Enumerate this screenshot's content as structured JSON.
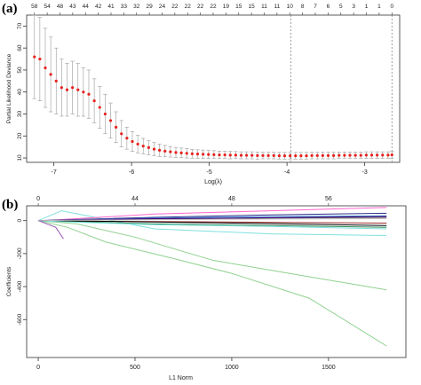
{
  "panels": {
    "a": "(a)",
    "b": "(b)"
  },
  "chart_data": [
    {
      "panel": "(a)",
      "type": "scatter",
      "xlabel": "Log(λ)",
      "ylabel": "Partial Likelihood Deviance",
      "xlim": [
        -7.35,
        -2.55
      ],
      "ylim": [
        8,
        75
      ],
      "x_ticks": [
        -7,
        -6,
        -5,
        -4,
        -3
      ],
      "x_tick_labels": [
        "-7",
        "-6",
        "-5",
        "-4",
        "-3"
      ],
      "y_ticks": [
        10,
        20,
        30,
        40,
        50,
        60,
        70
      ],
      "y_tick_labels": [
        "10",
        "20",
        "30",
        "40",
        "50",
        "60",
        "70"
      ],
      "top_axis_labels": [
        "58",
        "54",
        "48",
        "43",
        "44",
        "42",
        "41",
        "33",
        "32",
        "29",
        "24",
        "22",
        "22",
        "22",
        "22",
        "19",
        "15",
        "15",
        "11",
        "11",
        "10",
        "8",
        "7",
        "6",
        "5",
        "3",
        "1",
        "1",
        "0"
      ],
      "vlines_x": [
        -3.95,
        -2.65
      ],
      "point_color": "#e8231e",
      "errorbar_color": "#9a9a9a",
      "series": [
        {
          "x": [
            -7.25,
            -7.18,
            -7.11,
            -7.04,
            -6.97,
            -6.9,
            -6.83,
            -6.76,
            -6.69,
            -6.62,
            -6.55,
            -6.48,
            -6.41,
            -6.34,
            -6.27,
            -6.2,
            -6.13,
            -6.06,
            -5.99,
            -5.92,
            -5.85,
            -5.78,
            -5.71,
            -5.64,
            -5.57,
            -5.5,
            -5.43,
            -5.36,
            -5.29,
            -5.22,
            -5.15,
            -5.08,
            -5.01,
            -4.94,
            -4.87,
            -4.8,
            -4.73,
            -4.66,
            -4.59,
            -4.52,
            -4.45,
            -4.38,
            -4.31,
            -4.24,
            -4.17,
            -4.1,
            -4.03,
            -3.96,
            -3.89,
            -3.82,
            -3.75,
            -3.68,
            -3.61,
            -3.54,
            -3.47,
            -3.4,
            -3.33,
            -3.26,
            -3.19,
            -3.12,
            -3.05,
            -2.98,
            -2.91,
            -2.84,
            -2.77,
            -2.7,
            -2.65
          ],
          "y": [
            56,
            55,
            51,
            48,
            45,
            42,
            41,
            42,
            41,
            40,
            39,
            36,
            33,
            30,
            27,
            24,
            21,
            19,
            17.5,
            16.3,
            15.4,
            14.7,
            14.0,
            13.5,
            13.1,
            12.8,
            12.5,
            12.3,
            12.1,
            11.9,
            11.8,
            11.7,
            11.6,
            11.5,
            11.4,
            11.4,
            11.3,
            11.3,
            11.2,
            11.2,
            11.2,
            11.1,
            11.1,
            11.1,
            11.1,
            11.0,
            11.0,
            11.0,
            11.0,
            11.0,
            11.0,
            11.1,
            11.1,
            11.1,
            11.1,
            11.1,
            11.2,
            11.2,
            11.2,
            11.2,
            11.2,
            11.3,
            11.3,
            11.3,
            11.3,
            11.3,
            11.4
          ],
          "yerr": [
            19,
            19,
            18,
            17,
            15,
            13,
            12,
            12,
            12,
            11,
            11,
            10,
            9.5,
            9,
            8,
            7,
            6,
            5,
            4.5,
            4,
            3.5,
            3.2,
            3,
            2.8,
            2.6,
            2.4,
            2.3,
            2.2,
            2.1,
            2.0,
            1.9,
            1.9,
            1.8,
            1.8,
            1.7,
            1.7,
            1.7,
            1.6,
            1.6,
            1.6,
            1.6,
            1.6,
            1.5,
            1.5,
            1.5,
            1.5,
            1.5,
            1.5,
            1.5,
            1.5,
            1.5,
            1.5,
            1.5,
            1.5,
            1.5,
            1.5,
            1.5,
            1.5,
            1.5,
            1.5,
            1.5,
            1.5,
            1.5,
            1.5,
            1.5,
            1.5,
            1.5
          ]
        }
      ]
    },
    {
      "panel": "(b)",
      "type": "line",
      "xlabel": "L1 Norm",
      "ylabel": "Coefficients",
      "xlim": [
        -60,
        1900
      ],
      "ylim": [
        -830,
        90
      ],
      "x_ticks": [
        0,
        500,
        1000,
        1500
      ],
      "x_tick_labels": [
        "0",
        "500",
        "1000",
        "1500"
      ],
      "y_ticks": [
        0,
        -200,
        -400,
        -600
      ],
      "y_tick_labels": [
        "0",
        "-200",
        "-400",
        "-600"
      ],
      "top_axis_ticks": [
        0,
        500,
        1000,
        1500
      ],
      "top_axis_labels": [
        "0",
        "44",
        "48",
        "56"
      ],
      "series": [
        {
          "color": "#8fd18f",
          "x": [
            0,
            150,
            350,
            700,
            1000,
            1400,
            1800
          ],
          "y": [
            0,
            -40,
            -130,
            -230,
            -320,
            -470,
            -760
          ]
        },
        {
          "color": "#8fd18f",
          "x": [
            0,
            200,
            500,
            900,
            1300,
            1800
          ],
          "y": [
            0,
            -20,
            -100,
            -240,
            -320,
            -420
          ]
        },
        {
          "color": "#7fe0e0",
          "x": [
            0,
            120,
            600,
            1200,
            1800
          ],
          "y": [
            0,
            60,
            -50,
            -80,
            -90
          ]
        },
        {
          "color": "#ff66cc",
          "x": [
            0,
            100,
            600,
            1200,
            1800
          ],
          "y": [
            0,
            5,
            40,
            60,
            80
          ]
        },
        {
          "color": "#2e2e8a",
          "x": [
            0,
            100,
            600,
            1200,
            1800
          ],
          "y": [
            0,
            4,
            20,
            35,
            45
          ]
        },
        {
          "color": "#3a8fd0",
          "x": [
            0,
            100,
            600,
            1200,
            1800
          ],
          "y": [
            0,
            3,
            15,
            25,
            30
          ]
        },
        {
          "color": "#555555",
          "x": [
            0,
            100,
            600,
            1200,
            1800
          ],
          "y": [
            0,
            2,
            10,
            15,
            20
          ]
        },
        {
          "color": "#a03030",
          "x": [
            0,
            100,
            600,
            1200,
            1800
          ],
          "y": [
            0,
            -2,
            -5,
            -10,
            -15
          ]
        },
        {
          "color": "#2e8b57",
          "x": [
            0,
            100,
            600,
            1200,
            1800
          ],
          "y": [
            0,
            -3,
            -20,
            -30,
            -40
          ]
        },
        {
          "color": "#000000",
          "x": [
            0,
            100,
            600,
            1200,
            1800
          ],
          "y": [
            0,
            -1,
            -8,
            -18,
            -30
          ]
        },
        {
          "color": "#9b59b6",
          "x": [
            0,
            90,
            130
          ],
          "y": [
            0,
            -40,
            -110
          ]
        },
        {
          "color": "#7fe0e0",
          "x": [
            0,
            100,
            600,
            1200,
            1800
          ],
          "y": [
            0,
            -5,
            -25,
            -35,
            -50
          ]
        },
        {
          "color": "#4b0082",
          "x": [
            0,
            100,
            600,
            1200,
            1800
          ],
          "y": [
            0,
            3,
            12,
            18,
            25
          ]
        },
        {
          "color": "#c0c0c0",
          "x": [
            0,
            100,
            600,
            1200,
            1800
          ],
          "y": [
            0,
            2,
            6,
            10,
            12
          ]
        }
      ]
    }
  ]
}
